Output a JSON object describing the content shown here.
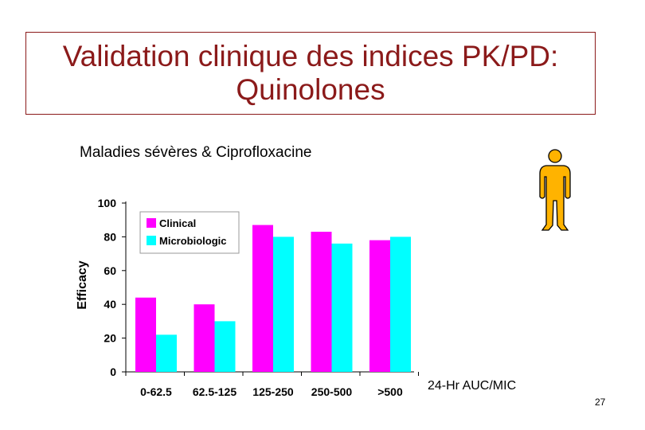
{
  "title": {
    "line1": "Validation clinique des indices PK/PD:",
    "line2": "Quinolones"
  },
  "subtitle": "Maladies sévères & Ciprofloxacine",
  "slide_number": "27",
  "icons": {
    "person": "person-icon"
  },
  "colors": {
    "title": "#8b1a1a",
    "clinical": "#ff00ff",
    "microbiologic": "#00ffff",
    "person_fill": "#ffb300"
  },
  "chart_data": {
    "type": "bar",
    "categories": [
      "0-62.5",
      "62.5-125",
      "125-250",
      "250-500",
      ">500"
    ],
    "series": [
      {
        "name": "Clinical",
        "values": [
          44,
          40,
          87,
          83,
          78
        ]
      },
      {
        "name": "Microbiologic",
        "values": [
          22,
          30,
          80,
          76,
          80
        ]
      }
    ],
    "ylabel": "Efficacy",
    "xlabel": "24-Hr AUC/MIC",
    "ylim": [
      0,
      100
    ],
    "yticks": [
      0,
      20,
      40,
      60,
      80,
      100
    ],
    "legend": "top-left",
    "grid": false
  }
}
